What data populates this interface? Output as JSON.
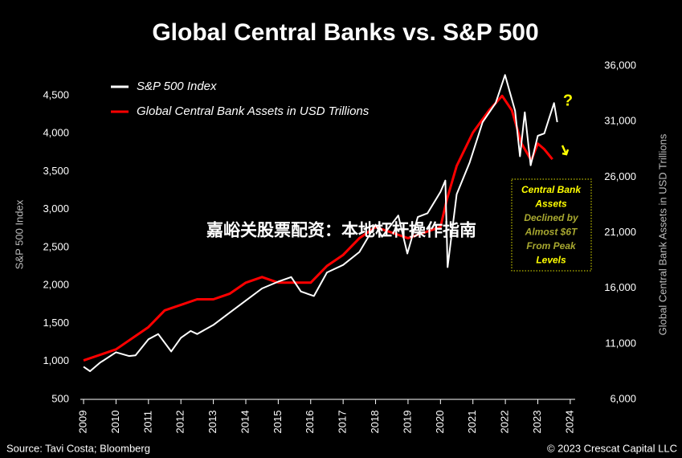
{
  "chart_data": {
    "type": "line",
    "title": "Global Central Banks vs. S&P 500",
    "y_label": "S&P 500 Index",
    "y2_label": "Global Central Bank Assets in USD Trillions",
    "source": "Source: Tavi Costa; Bloomberg",
    "copyright": "© 2023 Crescat Capital LLC",
    "overlay_text": "嘉峪关股票配资：本地杠杆操作指南",
    "question_mark": "?",
    "box_lines": [
      "Central Bank",
      "Assets",
      "Declined by",
      "Almost $6T",
      "From Peak",
      "Levels"
    ],
    "legend_position": "upper left",
    "grid": false,
    "xlim": [
      2008.9,
      2024.3
    ],
    "xticks": [
      2009,
      2010,
      2011,
      2012,
      2013,
      2014,
      2015,
      2016,
      2017,
      2018,
      2019,
      2020,
      2021,
      2022,
      2023,
      2024
    ],
    "ylim": [
      500,
      4890
    ],
    "yticks": [
      500,
      {
        "value": 1000,
        "label": "1,000"
      },
      {
        "value": 1500,
        "label": "1,500"
      },
      {
        "value": 2000,
        "label": "2,000"
      },
      {
        "value": 2500,
        "label": "2,500"
      },
      {
        "value": 3000,
        "label": "3,000"
      },
      {
        "value": 3500,
        "label": "3,500"
      },
      {
        "value": 4000,
        "label": "4,000"
      },
      {
        "value": 4500,
        "label": "4,500"
      }
    ],
    "y2lim": [
      6000,
      36000
    ],
    "y2ticks": [
      {
        "value": 6000,
        "label": "6,000"
      },
      {
        "value": 11000,
        "label": "11,000"
      },
      {
        "value": 16000,
        "label": "16,000"
      },
      {
        "value": 21000,
        "label": "21,000"
      },
      {
        "value": 26000,
        "label": "26,000"
      },
      {
        "value": 31000,
        "label": "31,000"
      },
      {
        "value": 36000,
        "label": "36,000"
      }
    ],
    "series": [
      {
        "name": "S&P 500 Index",
        "color": "#ffffff",
        "x": [
          2009.0,
          2009.2,
          2009.5,
          2010.0,
          2010.4,
          2010.6,
          2011.0,
          2011.3,
          2011.7,
          2012.0,
          2012.3,
          2012.5,
          2013.0,
          2013.5,
          2014.0,
          2014.5,
          2015.0,
          2015.4,
          2015.7,
          2016.1,
          2016.5,
          2017.0,
          2017.5,
          2018.0,
          2018.2,
          2018.7,
          2018.98,
          2019.3,
          2019.6,
          2020.0,
          2020.15,
          2020.22,
          2020.5,
          2020.9,
          2021.3,
          2021.7,
          2021.99,
          2022.3,
          2022.45,
          2022.6,
          2022.78,
          2023.0,
          2023.2,
          2023.35,
          2023.5,
          2023.6
        ],
        "values": [
          930,
          870,
          980,
          1120,
          1070,
          1080,
          1290,
          1360,
          1130,
          1310,
          1400,
          1360,
          1480,
          1640,
          1800,
          1960,
          2050,
          2110,
          1920,
          1860,
          2170,
          2270,
          2440,
          2800,
          2640,
          2920,
          2420,
          2900,
          2950,
          3230,
          3380,
          2240,
          3200,
          3620,
          4150,
          4400,
          4770,
          4300,
          3700,
          4280,
          3580,
          3970,
          4000,
          4200,
          4400,
          4150
        ]
      },
      {
        "name": "Global Central Bank Assets in USD Trillions",
        "color": "#ff0000",
        "axis": "y2",
        "x": [
          2009.0,
          2010.0,
          2011.0,
          2011.5,
          2012.0,
          2012.5,
          2013.0,
          2013.5,
          2014.0,
          2014.5,
          2015.0,
          2015.5,
          2016.0,
          2016.5,
          2017.0,
          2017.5,
          2018.0,
          2018.5,
          2019.0,
          2019.5,
          2020.0,
          2020.2,
          2020.5,
          2021.0,
          2021.5,
          2021.9,
          2022.2,
          2022.5,
          2022.8,
          2023.0,
          2023.2,
          2023.45
        ],
        "values": [
          9500,
          10500,
          12500,
          14000,
          14500,
          15000,
          15000,
          15500,
          16500,
          17000,
          16500,
          16500,
          16500,
          18000,
          19000,
          20500,
          21500,
          21000,
          20500,
          21000,
          21500,
          24000,
          27000,
          30000,
          32000,
          33300,
          32000,
          29000,
          27500,
          29000,
          28500,
          27600
        ]
      }
    ]
  }
}
